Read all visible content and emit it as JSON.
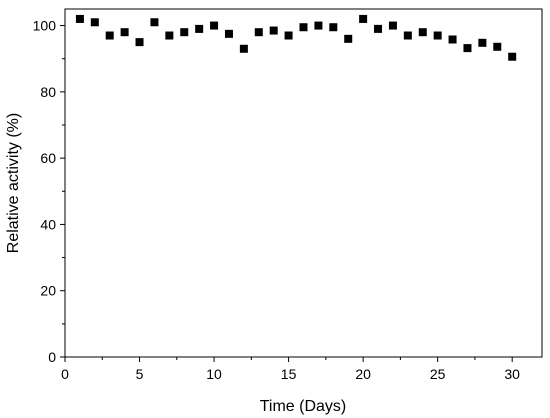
{
  "chart_data": {
    "type": "scatter",
    "title": "",
    "xlabel": "Time (Days)",
    "ylabel": "Relative activity (%)",
    "xlim": [
      0,
      32
    ],
    "ylim": [
      0,
      105
    ],
    "xticks": [
      0,
      5,
      10,
      15,
      20,
      25,
      30
    ],
    "yticks": [
      0,
      20,
      40,
      60,
      80,
      100
    ],
    "grid": false,
    "marker": "square",
    "marker_color": "#000000",
    "series": [
      {
        "x": [
          1,
          2,
          3,
          4,
          5,
          6,
          7,
          8,
          9,
          10,
          11,
          12,
          13,
          14,
          15,
          16,
          17,
          18,
          19,
          20,
          21,
          22,
          23,
          24,
          25,
          26,
          27,
          28,
          29,
          30
        ],
        "y": [
          102.0,
          101.0,
          97.0,
          98.0,
          95.0,
          101.0,
          97.0,
          98.0,
          99.0,
          100.0,
          97.5,
          93.0,
          98.0,
          98.5,
          97.0,
          99.5,
          100.0,
          99.5,
          96.0,
          102.0,
          99.0,
          100.0,
          97.0,
          98.0,
          97.0,
          95.8,
          93.2,
          94.8,
          93.6,
          90.6
        ]
      }
    ]
  }
}
